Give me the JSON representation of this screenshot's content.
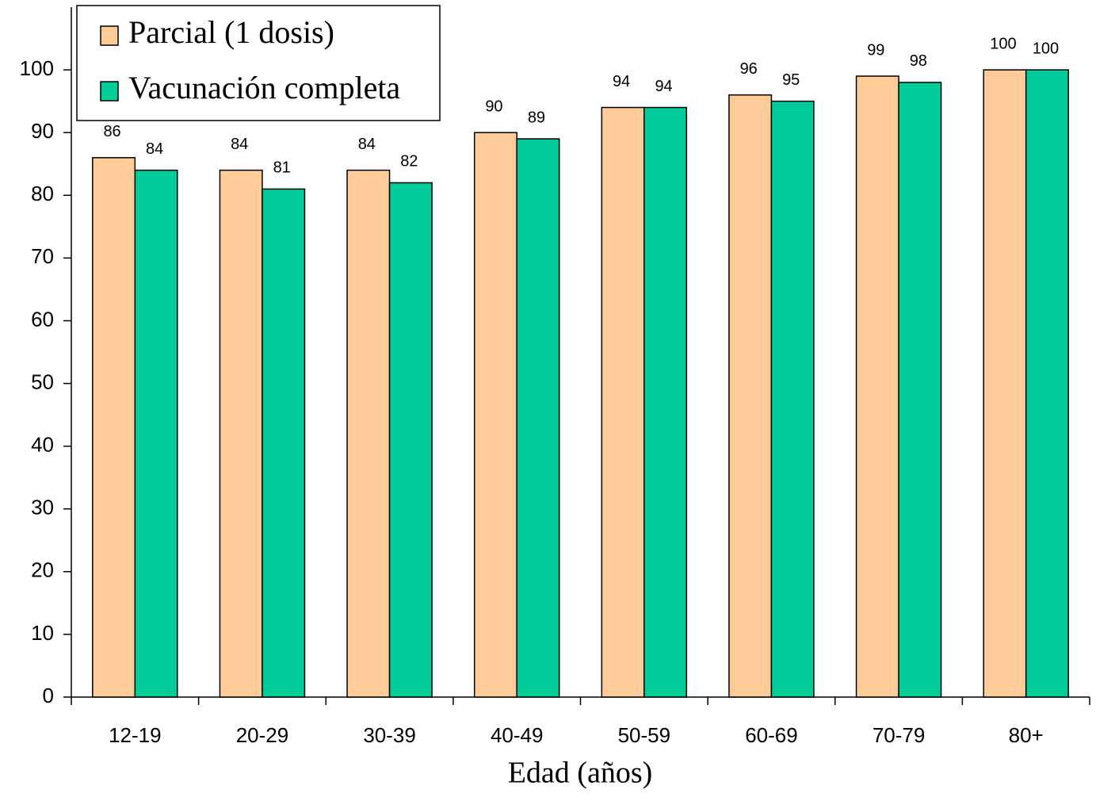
{
  "chart_data": {
    "type": "bar",
    "x_label": "Edad (años)",
    "categories": [
      "12-19",
      "20-29",
      "30-39",
      "40-49",
      "50-59",
      "60-69",
      "70-79",
      "80+"
    ],
    "series": [
      {
        "name": "Parcial (1 dosis)",
        "color": "#ffcc99",
        "values": [
          86,
          84,
          84,
          90,
          94,
          96,
          99,
          100
        ]
      },
      {
        "name": "Vacunación completa",
        "color": "#00cc99",
        "values": [
          84,
          81,
          82,
          89,
          94,
          95,
          98,
          100
        ]
      }
    ],
    "ylim": [
      0,
      110
    ],
    "yticks": [
      0,
      10,
      20,
      30,
      40,
      50,
      60,
      70,
      80,
      90,
      100
    ],
    "legend": "top-left"
  }
}
